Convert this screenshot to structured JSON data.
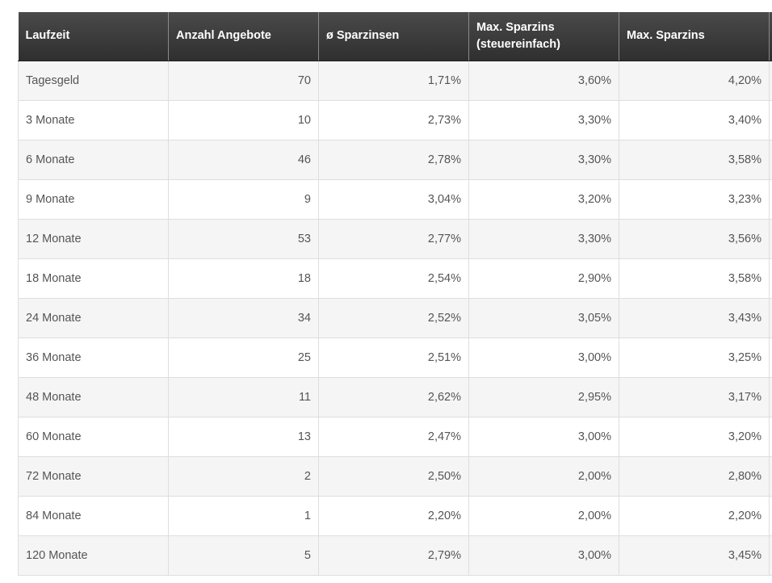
{
  "table": {
    "headers": [
      "Laufzeit",
      "Anzahl Angebote",
      "ø Sparzinsen",
      "Max. Sparzins (steuereinfach)",
      "Max. Sparzins"
    ],
    "rows": [
      [
        "Tagesgeld",
        "70",
        "1,71%",
        "3,60%",
        "4,20%"
      ],
      [
        "3 Monate",
        "10",
        "2,73%",
        "3,30%",
        "3,40%"
      ],
      [
        "6 Monate",
        "46",
        "2,78%",
        "3,30%",
        "3,58%"
      ],
      [
        "9 Monate",
        "9",
        "3,04%",
        "3,20%",
        "3,23%"
      ],
      [
        "12 Monate",
        "53",
        "2,77%",
        "3,30%",
        "3,56%"
      ],
      [
        "18 Monate",
        "18",
        "2,54%",
        "2,90%",
        "3,58%"
      ],
      [
        "24 Monate",
        "34",
        "2,52%",
        "3,05%",
        "3,43%"
      ],
      [
        "36 Monate",
        "25",
        "2,51%",
        "3,00%",
        "3,25%"
      ],
      [
        "48 Monate",
        "11",
        "2,62%",
        "2,95%",
        "3,17%"
      ],
      [
        "60 Monate",
        "13",
        "2,47%",
        "3,00%",
        "3,20%"
      ],
      [
        "72 Monate",
        "2",
        "2,50%",
        "2,00%",
        "2,80%"
      ],
      [
        "84 Monate",
        "1",
        "2,20%",
        "2,00%",
        "2,20%"
      ],
      [
        "120 Monate",
        "5",
        "2,79%",
        "3,00%",
        "3,45%"
      ]
    ]
  }
}
